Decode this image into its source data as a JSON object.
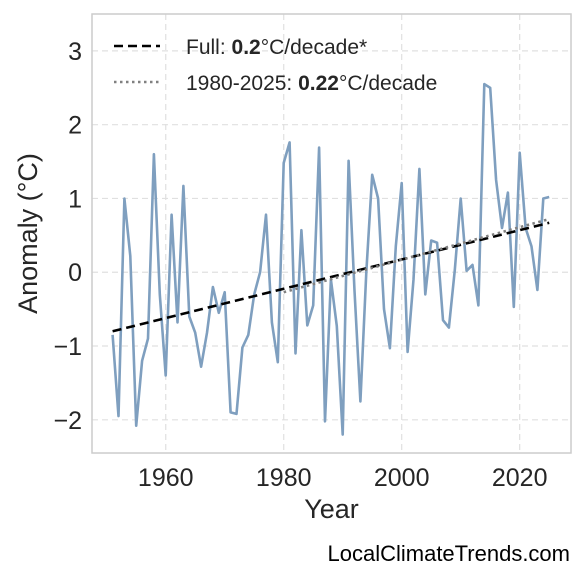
{
  "chart_data": {
    "type": "line",
    "xlabel": "Year",
    "ylabel": "Anomaly (°C)",
    "xlim": [
      1947.5,
      2028.7
    ],
    "ylim": [
      -2.45,
      3.5
    ],
    "x_ticks": [
      1960,
      1980,
      2000,
      2020
    ],
    "x_tick_labels": [
      "1960",
      "1980",
      "2000",
      "2020"
    ],
    "y_ticks": [
      -2,
      -1,
      0,
      1,
      2,
      3
    ],
    "y_tick_labels": [
      "−2",
      "−1",
      "0",
      "1",
      "2",
      "3"
    ],
    "grid": true,
    "legend_position": "top-left",
    "series": [
      {
        "kind": "anomaly",
        "color": "#7f9fbf",
        "x": [
          1951,
          1952,
          1953,
          1954,
          1955,
          1956,
          1957,
          1958,
          1959,
          1960,
          1961,
          1962,
          1963,
          1964,
          1965,
          1966,
          1967,
          1968,
          1969,
          1970,
          1971,
          1972,
          1973,
          1974,
          1975,
          1976,
          1977,
          1978,
          1979,
          1980,
          1981,
          1982,
          1983,
          1984,
          1985,
          1986,
          1987,
          1988,
          1989,
          1990,
          1991,
          1992,
          1993,
          1994,
          1995,
          1996,
          1997,
          1998,
          1999,
          2000,
          2001,
          2002,
          2003,
          2004,
          2005,
          2006,
          2007,
          2008,
          2009,
          2010,
          2011,
          2012,
          2013,
          2014,
          2015,
          2016,
          2017,
          2018,
          2019,
          2020,
          2021,
          2022,
          2023,
          2024,
          2025
        ],
        "y": [
          -0.85,
          -1.95,
          1.0,
          0.22,
          -2.08,
          -1.2,
          -0.9,
          1.6,
          -0.3,
          -1.4,
          0.78,
          -0.68,
          1.17,
          -0.6,
          -0.82,
          -1.28,
          -0.82,
          -0.2,
          -0.55,
          -0.27,
          -1.9,
          -1.92,
          -1.02,
          -0.85,
          -0.3,
          0.0,
          0.78,
          -0.68,
          -1.22,
          1.48,
          1.76,
          -1.1,
          0.57,
          -0.72,
          -0.45,
          1.69,
          -2.02,
          -0.1,
          -0.73,
          -2.2,
          1.51,
          -0.25,
          -1.75,
          0.0,
          1.32,
          1.0,
          -0.5,
          -1.03,
          0.35,
          1.21,
          -1.08,
          -0.1,
          1.4,
          -0.3,
          0.43,
          0.4,
          -0.65,
          -0.75,
          0.03,
          1.0,
          0.02,
          0.1,
          -0.45,
          2.55,
          2.5,
          1.25,
          0.6,
          1.08,
          -0.47,
          1.62,
          0.6,
          0.35,
          -0.24,
          1.0,
          1.02
        ]
      },
      {
        "kind": "trend_full",
        "name": "Full: 0.2°C/decade*",
        "color": "#000000",
        "x": [
          1951,
          2025
        ],
        "y": [
          -0.8,
          0.67
        ]
      },
      {
        "kind": "trend_recent",
        "name": "1980-2025: 0.22°C/decade",
        "color": "#808080",
        "x": [
          1980,
          2025
        ],
        "y": [
          -0.27,
          0.72
        ]
      }
    ],
    "legend": [
      {
        "prefix": "Full: ",
        "bold": "0.2",
        "suffix": "°C/decade*"
      },
      {
        "prefix": "1980-2025: ",
        "bold": "0.22",
        "suffix": "°C/decade"
      }
    ]
  },
  "watermark": "LocalClimateTrends.com"
}
